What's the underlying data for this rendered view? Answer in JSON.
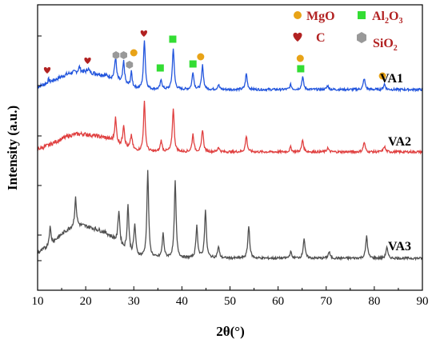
{
  "chart_data": {
    "type": "line",
    "xlabel": "2θ(°)",
    "ylabel": "Intensity (a.u.)",
    "xlim": [
      10,
      90
    ],
    "x_ticks": [
      10,
      20,
      30,
      40,
      50,
      60,
      70,
      80,
      90
    ],
    "y_tick_labels_shown": false,
    "grid": false,
    "legend": {
      "placement": "top-right",
      "entries": [
        {
          "marker": "circle",
          "color": "#e8a317",
          "label": "MgO"
        },
        {
          "marker": "square",
          "color": "#33dd33",
          "label_main": "Al",
          "sub1": "2",
          "label_mid": "O",
          "sub2": "3"
        },
        {
          "marker": "heart",
          "color": "#b22222",
          "label": "C"
        },
        {
          "marker": "hexagon",
          "color": "#999999",
          "label_main": "SiO",
          "sub1": "2"
        }
      ]
    },
    "series": [
      {
        "name": "VA1",
        "color": "#2255dd",
        "baseline": 112,
        "hump": {
          "center": 18.5,
          "width": 4.5,
          "height": 22
        },
        "peaks": [
          [
            12.3,
            4
          ],
          [
            18.7,
            6
          ],
          [
            20.5,
            5
          ],
          [
            26.2,
            28
          ],
          [
            27.9,
            28
          ],
          [
            29.5,
            18
          ],
          [
            32.2,
            62
          ],
          [
            35.7,
            12
          ],
          [
            38.2,
            52
          ],
          [
            42.3,
            22
          ],
          [
            44.3,
            30
          ],
          [
            47.6,
            6
          ],
          [
            53.4,
            20
          ],
          [
            62.6,
            6
          ],
          [
            65.1,
            16
          ],
          [
            70.3,
            5
          ],
          [
            77.9,
            14
          ],
          [
            82.1,
            7
          ]
        ]
      },
      {
        "name": "VA2",
        "color": "#e04040",
        "baseline": 190,
        "hump": {
          "center": 18.5,
          "width": 4.5,
          "height": 22
        },
        "peaks": [
          [
            26.2,
            30
          ],
          [
            27.9,
            28
          ],
          [
            29.5,
            18
          ],
          [
            32.2,
            62
          ],
          [
            35.7,
            14
          ],
          [
            38.2,
            55
          ],
          [
            42.3,
            22
          ],
          [
            44.3,
            28
          ],
          [
            47.6,
            6
          ],
          [
            53.4,
            20
          ],
          [
            62.6,
            6
          ],
          [
            65.1,
            15
          ],
          [
            70.3,
            5
          ],
          [
            77.9,
            12
          ],
          [
            82.1,
            7
          ]
        ]
      },
      {
        "name": "VA3",
        "color": "#505050",
        "baseline": 323,
        "hump": {
          "center": 18.5,
          "width": 4.5,
          "height": 40
        },
        "peaks": [
          [
            12.6,
            22
          ],
          [
            17.9,
            35
          ],
          [
            26.9,
            42
          ],
          [
            28.8,
            58
          ],
          [
            30.2,
            38
          ],
          [
            32.9,
            108
          ],
          [
            36.1,
            30
          ],
          [
            38.6,
            96
          ],
          [
            43.1,
            40
          ],
          [
            44.9,
            60
          ],
          [
            47.6,
            14
          ],
          [
            53.9,
            40
          ],
          [
            62.6,
            8
          ],
          [
            65.4,
            25
          ],
          [
            70.6,
            8
          ],
          [
            78.4,
            28
          ],
          [
            82.6,
            14
          ]
        ]
      }
    ],
    "phase_markers": [
      {
        "phase": "C",
        "x": 12.0,
        "above": "VA1"
      },
      {
        "phase": "C",
        "x": 20.4,
        "above": "VA1"
      },
      {
        "phase": "C",
        "x": 32.1,
        "above": "VA1"
      },
      {
        "phase": "SiO2",
        "x": 26.3,
        "above": "VA1"
      },
      {
        "phase": "SiO2",
        "x": 27.9,
        "above": "VA1"
      },
      {
        "phase": "SiO2",
        "x": 29.1,
        "above": "VA1"
      },
      {
        "phase": "MgO",
        "x": 30.0,
        "above": "VA1"
      },
      {
        "phase": "Al2O3",
        "x": 35.5,
        "above": "VA1"
      },
      {
        "phase": "Al2O3",
        "x": 38.1,
        "above": "VA1"
      },
      {
        "phase": "Al2O3",
        "x": 42.3,
        "above": "VA1"
      },
      {
        "phase": "MgO",
        "x": 43.9,
        "above": "VA1"
      },
      {
        "phase": "MgO",
        "x": 64.6,
        "above": "VA1"
      },
      {
        "phase": "Al2O3",
        "x": 64.7,
        "above": "VA1"
      },
      {
        "phase": "MgO",
        "x": 81.7,
        "above": "VA1"
      }
    ]
  }
}
